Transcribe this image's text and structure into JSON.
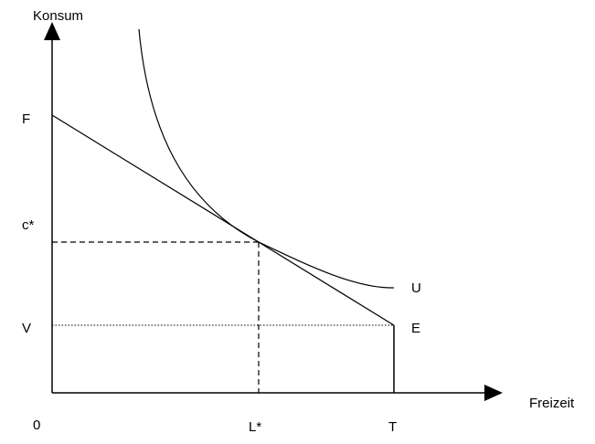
{
  "diagram": {
    "axes": {
      "y_title": "Konsum",
      "x_title": "Freizeit",
      "origin_label": "0"
    },
    "y_labels": {
      "F": "F",
      "c_star": "c*",
      "V": "V"
    },
    "x_labels": {
      "L_star": "L*",
      "T": "T"
    },
    "curve_labels": {
      "U": "U",
      "E": "E"
    },
    "colors": {
      "line": "#000000",
      "background": "#ffffff"
    }
  }
}
